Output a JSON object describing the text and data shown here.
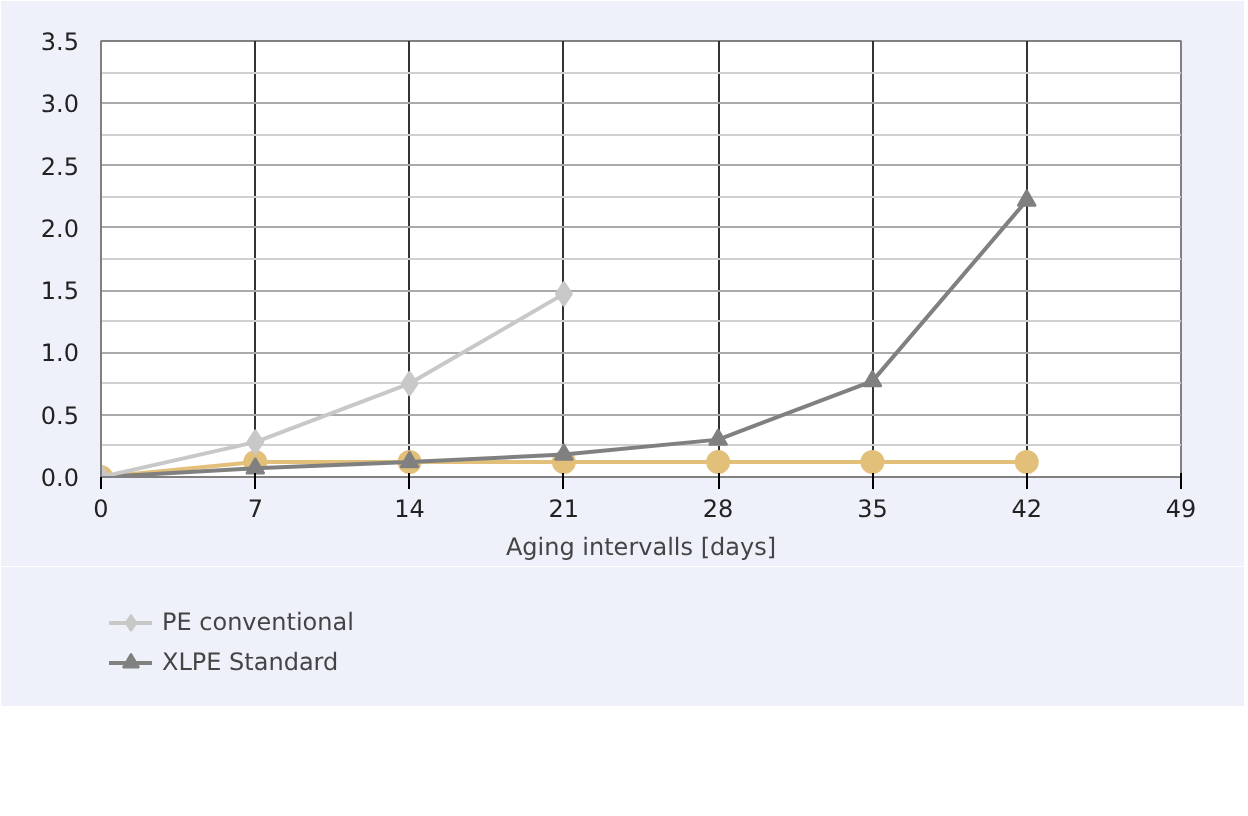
{
  "chart_data": {
    "type": "line",
    "xlabel": "Aging intervalls [days]",
    "x": [
      0,
      7,
      14,
      21,
      28,
      35,
      42
    ],
    "xlim": [
      0,
      49
    ],
    "xticks": [
      0,
      7,
      14,
      21,
      28,
      35,
      42,
      49
    ],
    "ylim": [
      0,
      3.5
    ],
    "yticks": [
      {
        "value": 0,
        "label": "0.0"
      },
      0.5,
      {
        "value": 1,
        "label": "1.0"
      },
      1.5,
      {
        "value": 2,
        "label": "2.0"
      },
      2.5,
      {
        "value": 3,
        "label": "3.0"
      },
      3.5
    ],
    "grid": true,
    "legend": "bottom left",
    "series": [
      {
        "name": "PE conventional",
        "color": "#c8c8c8",
        "marker": "diamond",
        "x": [
          0,
          7,
          14,
          21
        ],
        "values": [
          0,
          0.28,
          0.75,
          1.47
        ]
      },
      {
        "name": "XLPE Standard",
        "color": "#808080",
        "marker": "triangle",
        "values": [
          0,
          0.07,
          0.12,
          0.18,
          0.3,
          0.77,
          2.22
        ]
      },
      {
        "color": "#e3c07a",
        "marker": "circle",
        "values": [
          0,
          0.12,
          0.12,
          0.12,
          0.12,
          0.12,
          0.12
        ]
      }
    ]
  }
}
